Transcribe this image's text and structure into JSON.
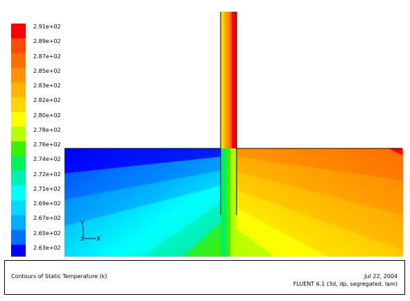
{
  "legend": {
    "labels": [
      "2.91e+02",
      "2.89e+02",
      "2.87e+02",
      "2.85e+02",
      "2.83e+02",
      "2.82e+02",
      "2.80e+02",
      "2.78e+02",
      "2.76e+02",
      "2.74e+02",
      "2.72e+02",
      "2.71e+02",
      "2.69e+02",
      "2.67e+02",
      "2.65e+02",
      "2.63e+02"
    ],
    "colors": [
      "#ff0000",
      "#ff4a00",
      "#ff6e00",
      "#ff9200",
      "#ffb400",
      "#ffd600",
      "#ffff00",
      "#b6ff00",
      "#3cf000",
      "#00f060",
      "#00f0b4",
      "#00ffff",
      "#00d8ff",
      "#00b0ff",
      "#0070ff",
      "#0000ff"
    ]
  },
  "axes": {
    "y_label": "Y",
    "x_label": "X",
    "z_label": "Z"
  },
  "caption": {
    "title": "Contours of Static Temperature (k)",
    "date": "Jul 22, 2004",
    "solver": "FLUENT 6.1 (3d, dp, segregated, lam)"
  }
}
